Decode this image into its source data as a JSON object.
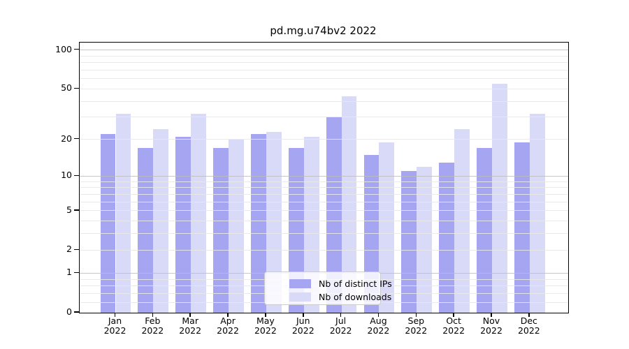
{
  "title": "pd.mg.u74bv2 2022",
  "chart_data": {
    "type": "bar",
    "title": "pd.mg.u74bv2 2022",
    "categories": [
      "Jan",
      "Feb",
      "Mar",
      "Apr",
      "May",
      "Jun",
      "Jul",
      "Aug",
      "Sep",
      "Oct",
      "Nov",
      "Dec"
    ],
    "category_year": "2022",
    "series": [
      {
        "name": "Nb of distinct IPs",
        "color": "#a5a5f1",
        "values": [
          22,
          17,
          21,
          17,
          22,
          17,
          30,
          15,
          11,
          13,
          17,
          19
        ]
      },
      {
        "name": "Nb of downloads",
        "color": "#d9d9f8",
        "values": [
          32,
          24,
          32,
          20,
          23,
          21,
          44,
          19,
          12,
          24,
          55,
          32
        ]
      }
    ],
    "yscale": "log1p",
    "ylim": [
      0,
      100
    ],
    "yticks": [
      0,
      1,
      2,
      5,
      10,
      20,
      50,
      100
    ],
    "grid": {
      "major": [
        1,
        10,
        100
      ],
      "minor": [
        0.2,
        0.4,
        0.6,
        0.8,
        2,
        3,
        4,
        5,
        6,
        7,
        8,
        9,
        20,
        30,
        40,
        50,
        60,
        70,
        80,
        90
      ],
      "on": true
    },
    "legend": {
      "position": "lower-center",
      "entries": [
        "Nb of distinct IPs",
        "Nb of downloads"
      ]
    },
    "colors": {
      "distinct_ips_bar": "#a5a5f1",
      "downloads_bar": "#d9d9f8",
      "major_grid": "#bdbdbd",
      "minor_grid": "#e8e8e8",
      "axis": "#000000",
      "legend_border": "#cccccc"
    }
  }
}
